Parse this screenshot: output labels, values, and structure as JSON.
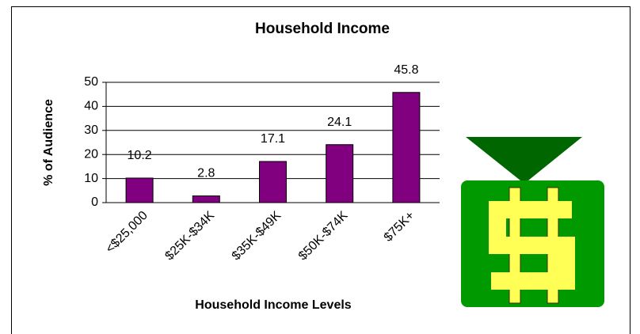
{
  "chart_data": {
    "type": "bar",
    "title": "Household Income",
    "x_label": "Household Income Levels",
    "y_label": "% of Audience",
    "categories": [
      "<$25,000",
      "$25K-$34K",
      "$35K-$49K",
      "$50K-$74K",
      "$75K+"
    ],
    "values": [
      10.2,
      2.8,
      17.1,
      24.1,
      45.8
    ],
    "color": "#800080",
    "ylim": [
      0,
      50
    ],
    "yticks": [
      0,
      10,
      20,
      30,
      40,
      50
    ],
    "grid": true
  }
}
